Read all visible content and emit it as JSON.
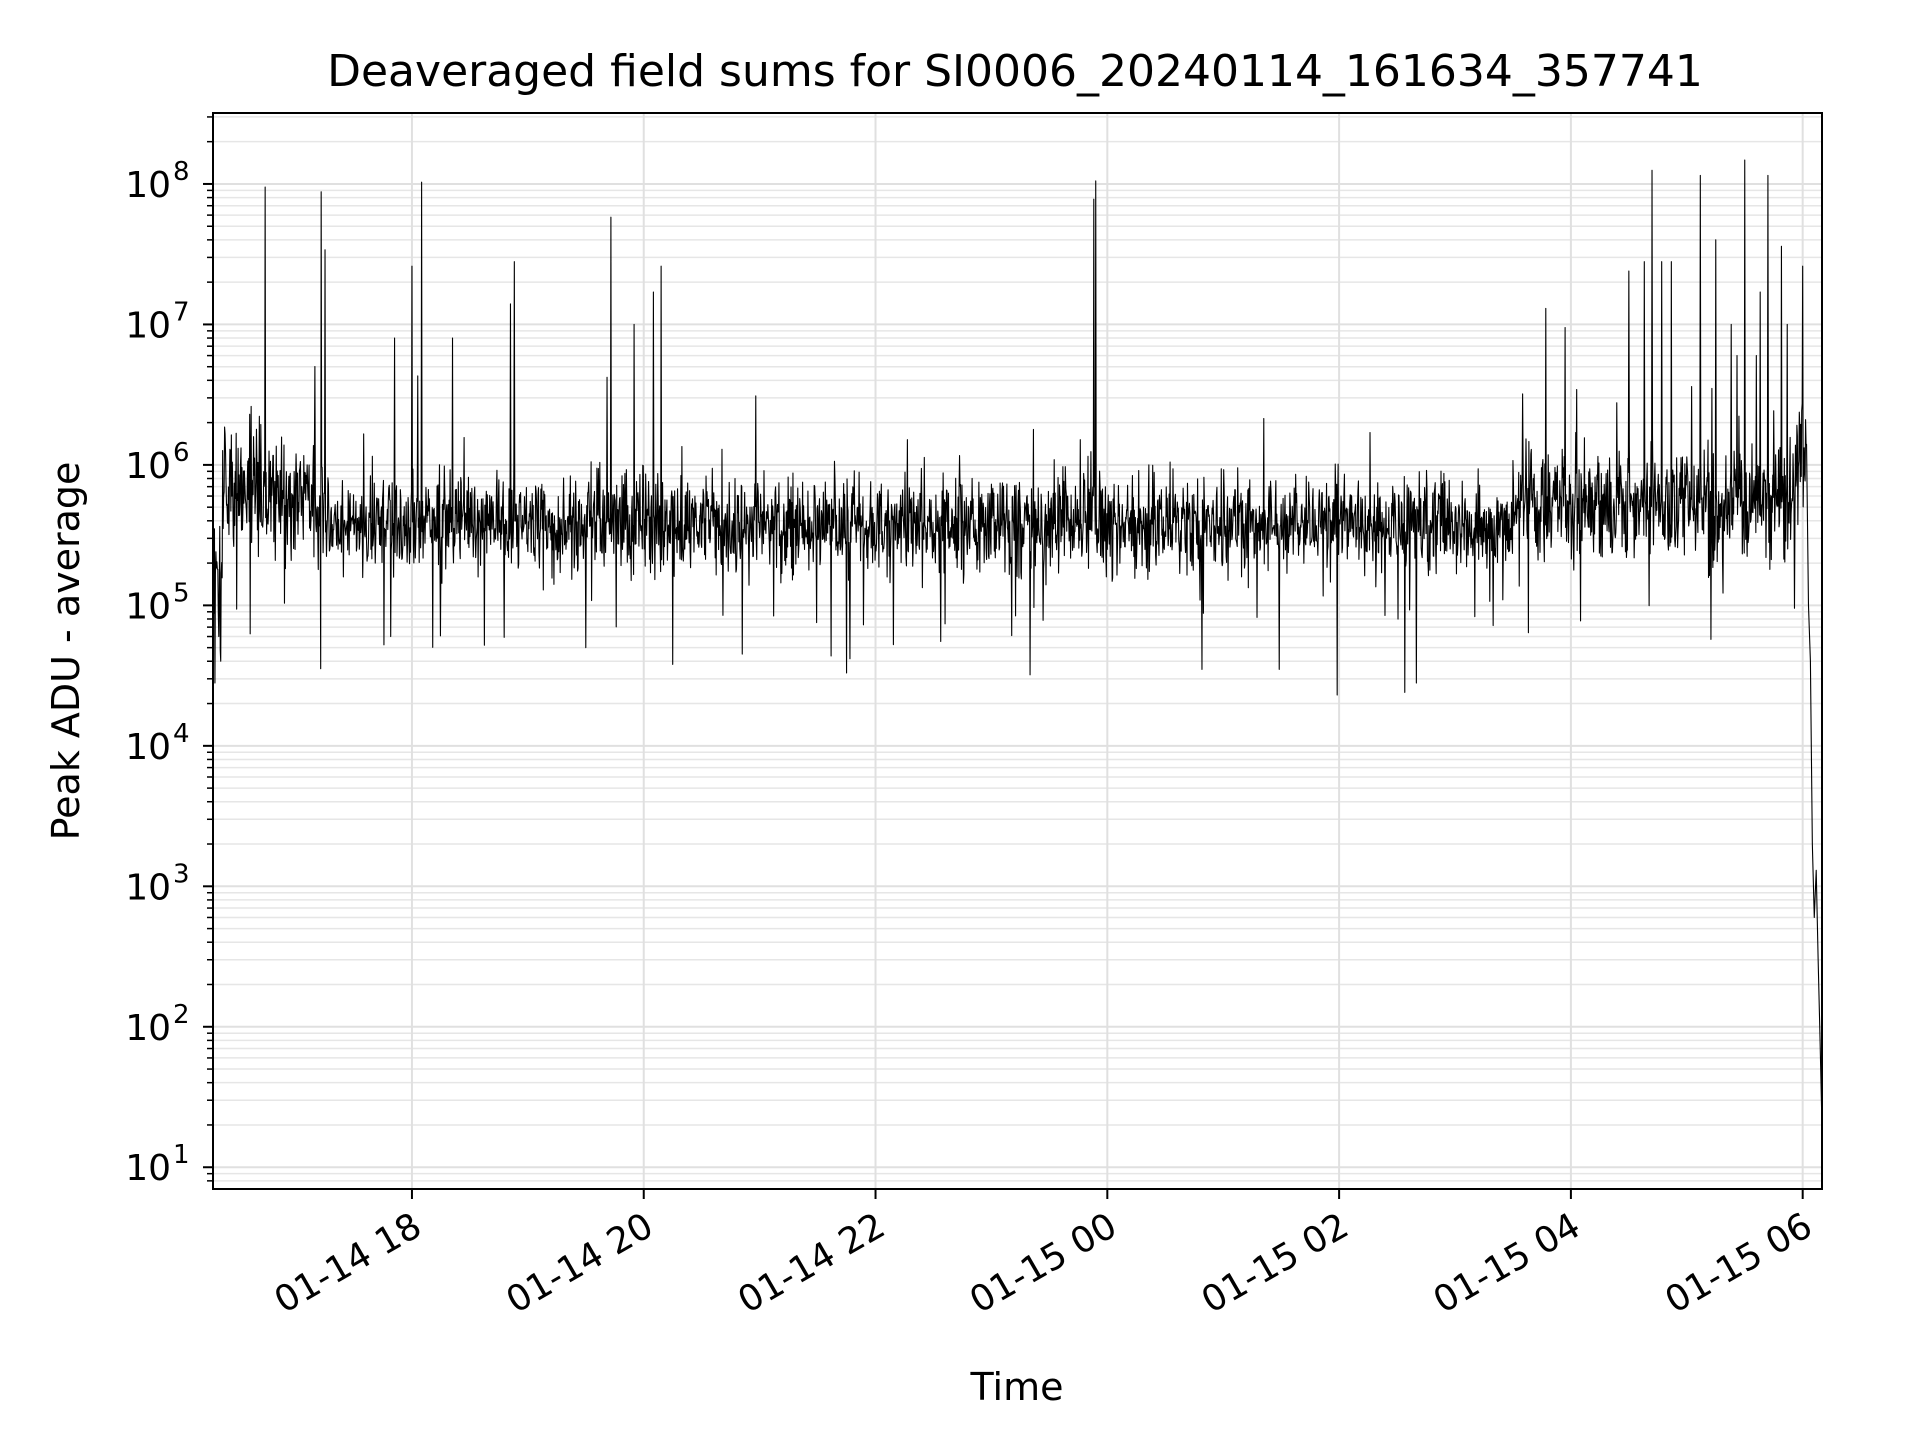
{
  "chart_data": {
    "type": "line",
    "title": "Deaveraged field sums for SI0006_20240114_161634_357741",
    "xlabel": "Time",
    "ylabel": "Peak ADU - average",
    "yscale": "log",
    "ylim": [
      7,
      320000000
    ],
    "xlim": [
      "2024-01-14 16:17",
      "2024-01-15 06:10"
    ],
    "grid": true,
    "line_color": "#000000",
    "x_ticks": [
      {
        "label": "01-14 18",
        "time": "2024-01-14 18:00"
      },
      {
        "label": "01-14 20",
        "time": "2024-01-14 20:00"
      },
      {
        "label": "01-14 22",
        "time": "2024-01-14 22:00"
      },
      {
        "label": "01-15 00",
        "time": "2024-01-15 00:00"
      },
      {
        "label": "01-15 02",
        "time": "2024-01-15 02:00"
      },
      {
        "label": "01-15 04",
        "time": "2024-01-15 04:00"
      },
      {
        "label": "01-15 06",
        "time": "2024-01-15 06:00"
      }
    ],
    "y_ticks": [
      {
        "base": "10",
        "exp": "1",
        "value": 10
      },
      {
        "base": "10",
        "exp": "2",
        "value": 100
      },
      {
        "base": "10",
        "exp": "3",
        "value": 1000
      },
      {
        "base": "10",
        "exp": "4",
        "value": 10000
      },
      {
        "base": "10",
        "exp": "5",
        "value": 100000
      },
      {
        "base": "10",
        "exp": "6",
        "value": 1000000
      },
      {
        "base": "10",
        "exp": "7",
        "value": 10000000
      },
      {
        "base": "10",
        "exp": "8",
        "value": 100000000
      }
    ],
    "series": [
      {
        "baseline_segments": [
          {
            "from": "2024-01-14 16:17",
            "to": "2024-01-14 16:22",
            "center": 150000,
            "spread": 0.45
          },
          {
            "from": "2024-01-14 16:22",
            "to": "2024-01-14 17:10",
            "center": 650000,
            "spread": 0.35
          },
          {
            "from": "2024-01-14 17:10",
            "to": "2024-01-15 03:30",
            "center": 380000,
            "spread": 0.28
          },
          {
            "from": "2024-01-15 03:30",
            "to": "2024-01-15 05:55",
            "center": 520000,
            "spread": 0.32
          },
          {
            "from": "2024-01-15 05:55",
            "to": "2024-01-15 06:02",
            "center": 900000,
            "spread": 0.35
          }
        ],
        "spikes": [
          {
            "time": "2024-01-14 16:44",
            "value": 95000000
          },
          {
            "time": "2024-01-14 17:13",
            "value": 88000000
          },
          {
            "time": "2024-01-14 17:15",
            "value": 34000000
          },
          {
            "time": "2024-01-14 17:51",
            "value": 8000000
          },
          {
            "time": "2024-01-14 18:00",
            "value": 26000000
          },
          {
            "time": "2024-01-14 18:03",
            "value": 4300000
          },
          {
            "time": "2024-01-14 18:05",
            "value": 103000000
          },
          {
            "time": "2024-01-14 18:21",
            "value": 8000000
          },
          {
            "time": "2024-01-14 18:51",
            "value": 14000000
          },
          {
            "time": "2024-01-14 18:53",
            "value": 28000000
          },
          {
            "time": "2024-01-14 19:41",
            "value": 4200000
          },
          {
            "time": "2024-01-14 19:43",
            "value": 58000000
          },
          {
            "time": "2024-01-14 19:55",
            "value": 10000000
          },
          {
            "time": "2024-01-14 20:05",
            "value": 17000000
          },
          {
            "time": "2024-01-14 20:09",
            "value": 26000000
          },
          {
            "time": "2024-01-14 20:58",
            "value": 3100000
          },
          {
            "time": "2024-01-14 23:53",
            "value": 78000000
          },
          {
            "time": "2024-01-14 23:54",
            "value": 105000000
          },
          {
            "time": "2024-01-15 02:16",
            "value": 1700000
          },
          {
            "time": "2024-01-15 03:35",
            "value": 3200000
          },
          {
            "time": "2024-01-15 03:47",
            "value": 13000000
          },
          {
            "time": "2024-01-15 03:57",
            "value": 9500000
          },
          {
            "time": "2024-01-15 04:30",
            "value": 24000000
          },
          {
            "time": "2024-01-15 04:38",
            "value": 28000000
          },
          {
            "time": "2024-01-15 04:42",
            "value": 125000000
          },
          {
            "time": "2024-01-15 04:47",
            "value": 28000000
          },
          {
            "time": "2024-01-15 04:52",
            "value": 28000000
          },
          {
            "time": "2024-01-15 05:07",
            "value": 115000000
          },
          {
            "time": "2024-01-15 05:13",
            "value": 3500000
          },
          {
            "time": "2024-01-15 05:15",
            "value": 40000000
          },
          {
            "time": "2024-01-15 05:23",
            "value": 10000000
          },
          {
            "time": "2024-01-15 05:26",
            "value": 6000000
          },
          {
            "time": "2024-01-15 05:30",
            "value": 148000000
          },
          {
            "time": "2024-01-15 05:36",
            "value": 6000000
          },
          {
            "time": "2024-01-15 05:38",
            "value": 17000000
          },
          {
            "time": "2024-01-15 05:42",
            "value": 115000000
          },
          {
            "time": "2024-01-15 05:49",
            "value": 36000000
          },
          {
            "time": "2024-01-15 05:52",
            "value": 10000000
          },
          {
            "time": "2024-01-15 06:00",
            "value": 26000000
          }
        ],
        "dips": [
          {
            "time": "2024-01-14 16:18",
            "value": 28000
          },
          {
            "time": "2024-01-14 16:20",
            "value": 60000
          },
          {
            "time": "2024-01-14 16:21",
            "value": 40000
          },
          {
            "time": "2024-01-14 17:49",
            "value": 60000
          },
          {
            "time": "2024-01-14 19:30",
            "value": 50000
          },
          {
            "time": "2024-01-14 20:15",
            "value": 38000
          },
          {
            "time": "2024-01-14 20:51",
            "value": 45000
          },
          {
            "time": "2024-01-14 21:45",
            "value": 33000
          },
          {
            "time": "2024-01-14 23:20",
            "value": 32000
          },
          {
            "time": "2024-01-15 00:49",
            "value": 35000
          },
          {
            "time": "2024-01-15 01:29",
            "value": 35000
          },
          {
            "time": "2024-01-15 01:59",
            "value": 23000
          },
          {
            "time": "2024-01-15 02:34",
            "value": 24000
          },
          {
            "time": "2024-01-15 02:40",
            "value": 28000
          }
        ],
        "tail": [
          {
            "time": "2024-01-15 06:02",
            "value": 1400000
          },
          {
            "time": "2024-01-15 06:03",
            "value": 100000
          },
          {
            "time": "2024-01-15 06:04",
            "value": 40000
          },
          {
            "time": "2024-01-15 06:05",
            "value": 2000
          },
          {
            "time": "2024-01-15 06:06",
            "value": 600
          },
          {
            "time": "2024-01-15 06:07",
            "value": 1300
          },
          {
            "time": "2024-01-15 06:08",
            "value": 300
          },
          {
            "time": "2024-01-15 06:09",
            "value": 80
          },
          {
            "time": "2024-01-15 06:10",
            "value": 19
          }
        ]
      }
    ]
  }
}
